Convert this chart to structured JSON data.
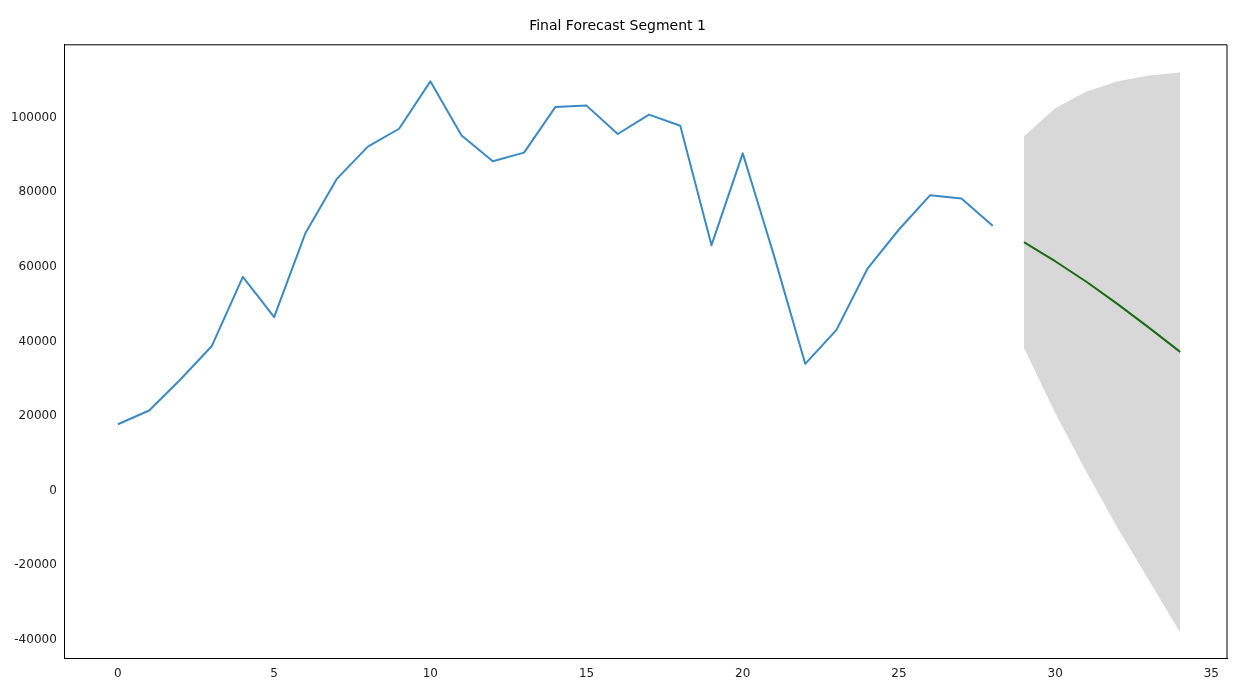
{
  "chart_data": {
    "type": "line",
    "title": "Final Forecast Segment 1",
    "xlim": [
      -1.7,
      35.5
    ],
    "ylim": [
      -45000,
      119500
    ],
    "xticks": [
      0,
      5,
      10,
      15,
      20,
      25,
      30,
      35
    ],
    "yticks": [
      -40000,
      -20000,
      0,
      20000,
      40000,
      60000,
      80000,
      100000
    ],
    "grid": false,
    "legend": false,
    "marker": "none",
    "line_style": "solid",
    "series": [
      {
        "color": "#3a8ac4",
        "x": [
          0,
          1,
          2,
          3,
          4,
          5,
          6,
          7,
          8,
          9,
          10,
          11,
          12,
          13,
          14,
          15,
          16,
          17,
          18,
          19,
          20,
          21,
          22,
          23,
          24,
          25,
          26,
          27,
          28
        ],
        "values": [
          17800,
          21500,
          29800,
          38700,
          57300,
          46500,
          69000,
          83500,
          92200,
          97000,
          109700,
          95200,
          88300,
          90600,
          102800,
          103200,
          95600,
          100800,
          97800,
          65800,
          90400,
          63000,
          34000,
          43100,
          59600,
          70000,
          79200,
          78300,
          71000
        ]
      },
      {
        "color": "#1a6b10",
        "x": [
          29,
          30,
          31,
          32,
          33,
          34
        ],
        "values": [
          66600,
          61500,
          56000,
          50000,
          43700,
          37200
        ],
        "lower": [
          38300,
          20800,
          5000,
          -10000,
          -24000,
          -38000
        ],
        "upper": [
          95000,
          102500,
          107000,
          109700,
          111300,
          112100
        ]
      }
    ]
  }
}
